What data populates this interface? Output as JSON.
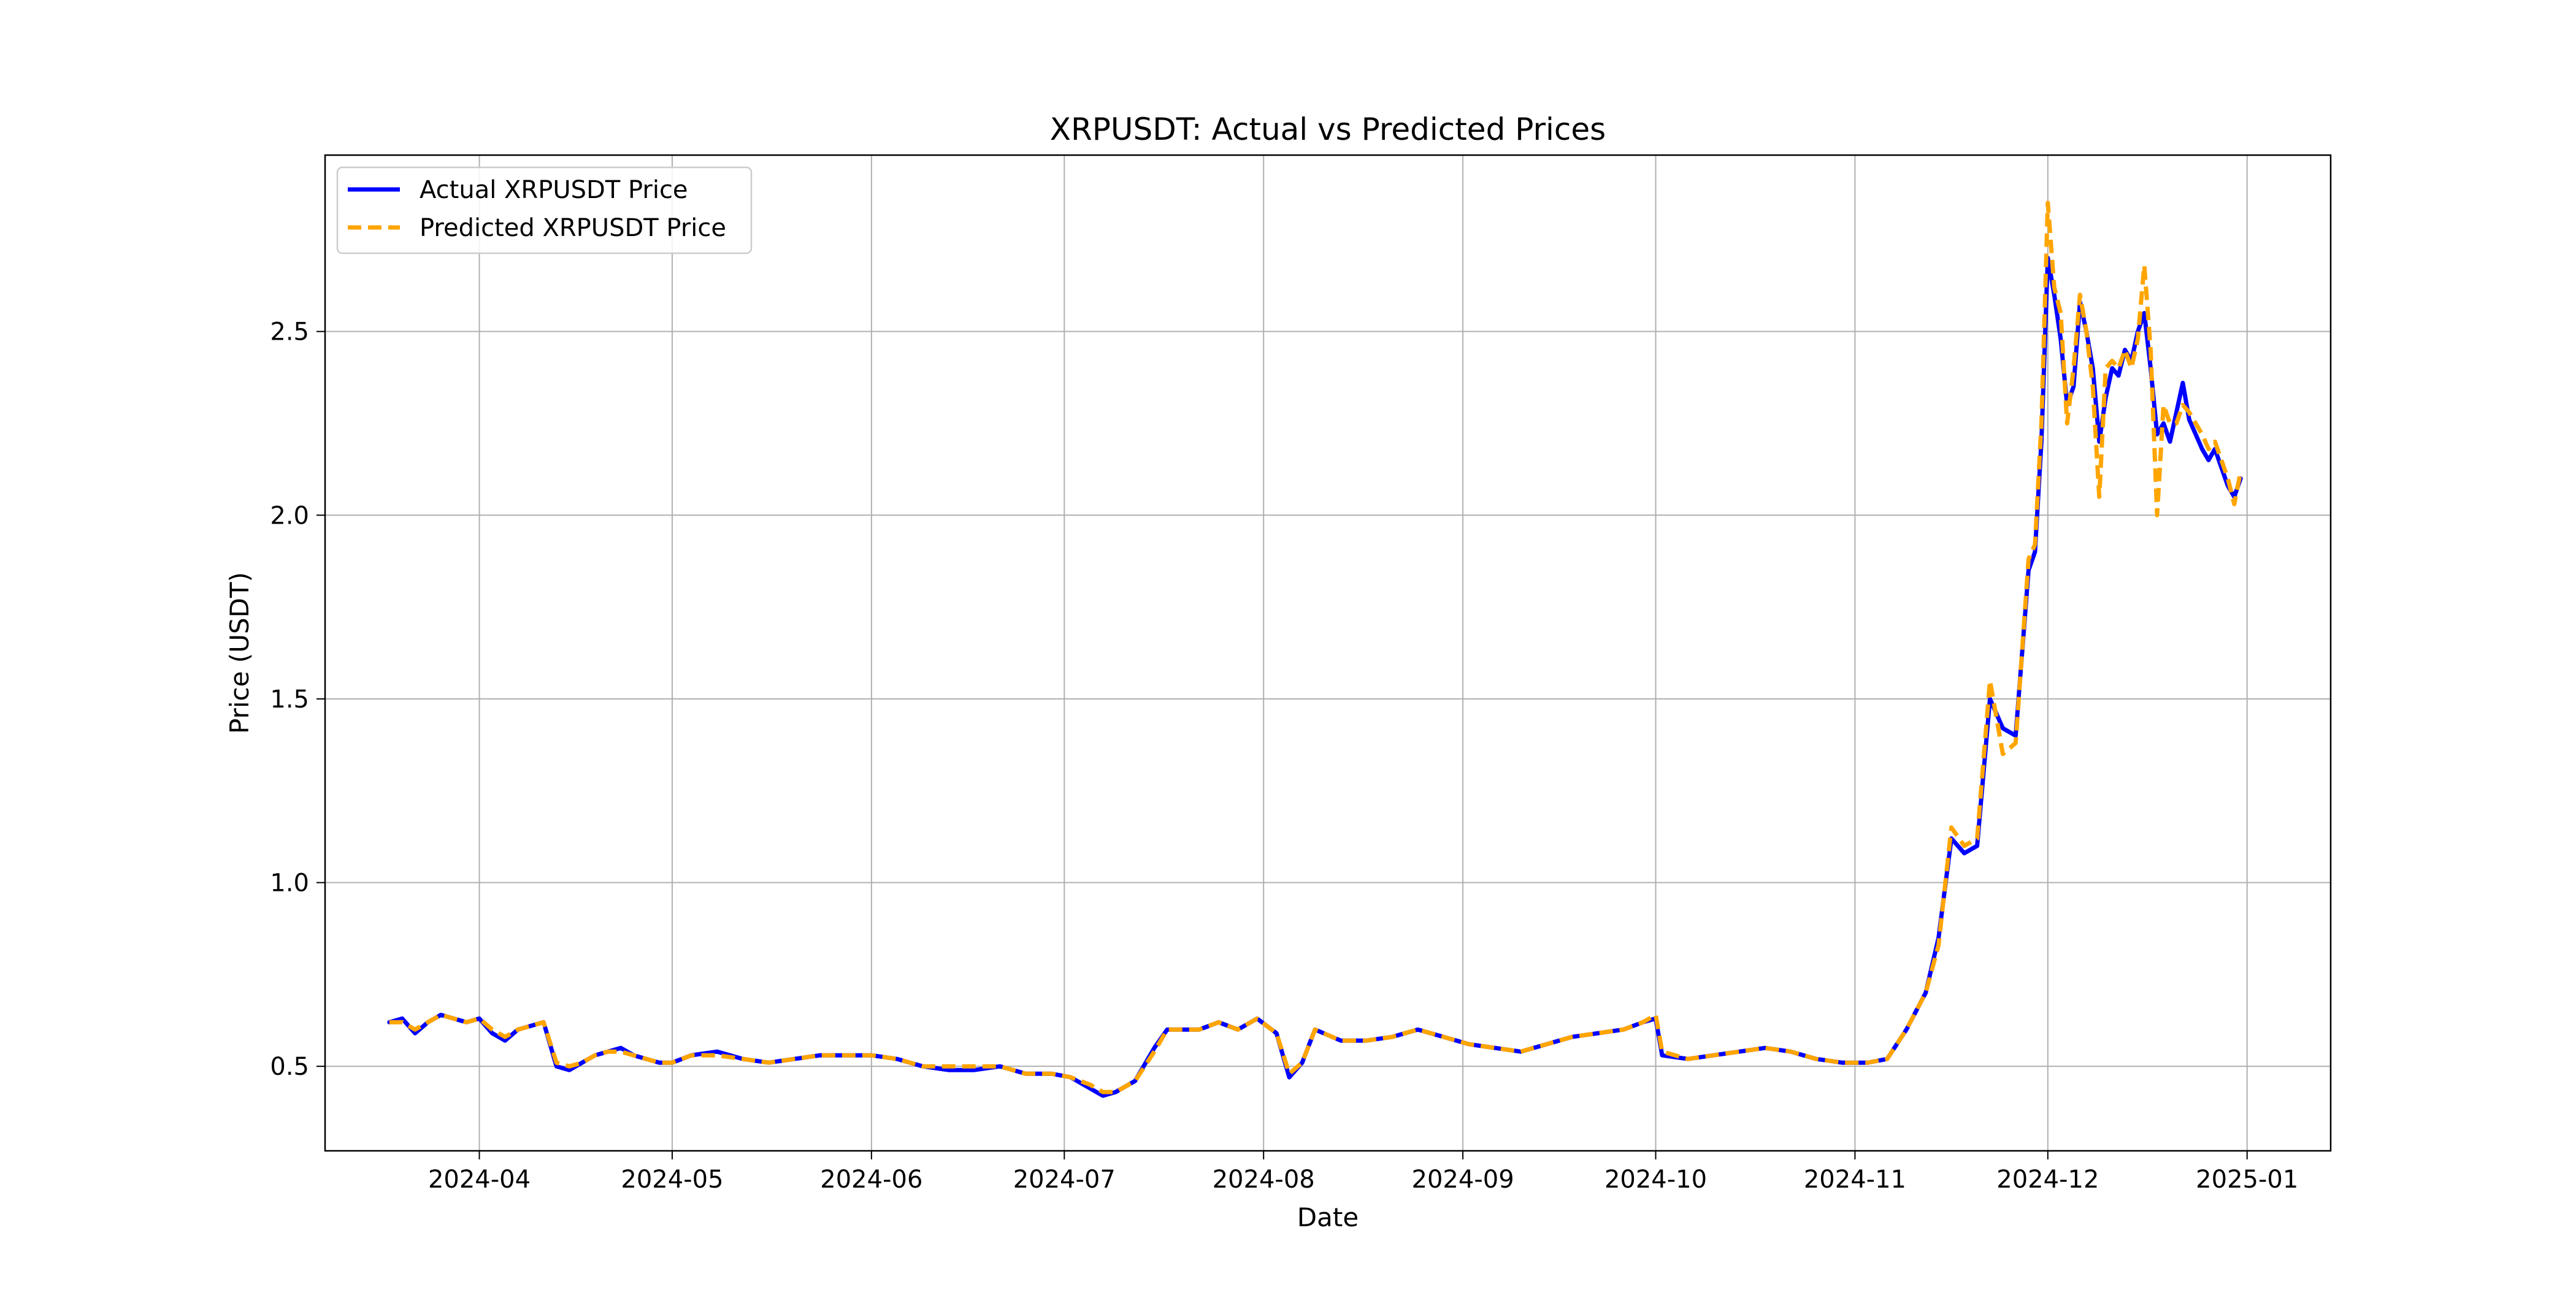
{
  "chart_data": {
    "type": "line",
    "title": "XRPUSDT: Actual vs Predicted Prices",
    "xlabel": "Date",
    "ylabel": "Price (USDT)",
    "x_range": [
      "2024-03-08",
      "2025-01-14"
    ],
    "ylim": [
      0.27,
      2.98
    ],
    "y_ticks": [
      0.5,
      1.0,
      1.5,
      2.0,
      2.5
    ],
    "y_tick_labels": [
      "0.5",
      "1.0",
      "1.5",
      "2.0",
      "2.5"
    ],
    "x_ticks": [
      "2024-04-01",
      "2024-05-01",
      "2024-06-01",
      "2024-07-01",
      "2024-08-01",
      "2024-09-01",
      "2024-10-01",
      "2024-11-01",
      "2024-12-01",
      "2025-01-01"
    ],
    "x_tick_labels": [
      "2024-04",
      "2024-05",
      "2024-06",
      "2024-07",
      "2024-08",
      "2024-09",
      "2024-10",
      "2024-11",
      "2024-12",
      "2025-01"
    ],
    "grid": true,
    "legend_position": "top-left",
    "series": [
      {
        "name": "Actual XRPUSDT Price",
        "color": "#0000ff",
        "style": "solid",
        "x": [
          "2024-03-18",
          "2024-03-20",
          "2024-03-22",
          "2024-03-24",
          "2024-03-26",
          "2024-03-28",
          "2024-03-30",
          "2024-04-01",
          "2024-04-03",
          "2024-04-05",
          "2024-04-07",
          "2024-04-09",
          "2024-04-11",
          "2024-04-13",
          "2024-04-15",
          "2024-04-17",
          "2024-04-19",
          "2024-04-21",
          "2024-04-23",
          "2024-04-25",
          "2024-04-27",
          "2024-04-29",
          "2024-05-01",
          "2024-05-04",
          "2024-05-08",
          "2024-05-12",
          "2024-05-16",
          "2024-05-20",
          "2024-05-24",
          "2024-05-28",
          "2024-06-01",
          "2024-06-05",
          "2024-06-09",
          "2024-06-13",
          "2024-06-17",
          "2024-06-21",
          "2024-06-25",
          "2024-06-29",
          "2024-07-02",
          "2024-07-05",
          "2024-07-07",
          "2024-07-09",
          "2024-07-12",
          "2024-07-15",
          "2024-07-17",
          "2024-07-19",
          "2024-07-22",
          "2024-07-25",
          "2024-07-28",
          "2024-07-31",
          "2024-08-03",
          "2024-08-05",
          "2024-08-07",
          "2024-08-09",
          "2024-08-13",
          "2024-08-17",
          "2024-08-21",
          "2024-08-25",
          "2024-08-29",
          "2024-09-02",
          "2024-09-06",
          "2024-09-10",
          "2024-09-14",
          "2024-09-18",
          "2024-09-22",
          "2024-09-26",
          "2024-09-29",
          "2024-10-01",
          "2024-10-02",
          "2024-10-06",
          "2024-10-10",
          "2024-10-14",
          "2024-10-18",
          "2024-10-22",
          "2024-10-26",
          "2024-10-30",
          "2024-11-03",
          "2024-11-06",
          "2024-11-09",
          "2024-11-12",
          "2024-11-14",
          "2024-11-16",
          "2024-11-18",
          "2024-11-20",
          "2024-11-22",
          "2024-11-24",
          "2024-11-26",
          "2024-11-28",
          "2024-11-29",
          "2024-11-30",
          "2024-12-01",
          "2024-12-02",
          "2024-12-03",
          "2024-12-04",
          "2024-12-05",
          "2024-12-06",
          "2024-12-07",
          "2024-12-08",
          "2024-12-09",
          "2024-12-10",
          "2024-12-11",
          "2024-12-12",
          "2024-12-13",
          "2024-12-14",
          "2024-12-15",
          "2024-12-16",
          "2024-12-17",
          "2024-12-18",
          "2024-12-19",
          "2024-12-20",
          "2024-12-21",
          "2024-12-22",
          "2024-12-23",
          "2024-12-24",
          "2024-12-25",
          "2024-12-26",
          "2024-12-27",
          "2024-12-28",
          "2024-12-29",
          "2024-12-30",
          "2024-12-31"
        ],
        "y": [
          0.62,
          0.63,
          0.59,
          0.62,
          0.64,
          0.63,
          0.62,
          0.63,
          0.59,
          0.57,
          0.6,
          0.61,
          0.62,
          0.5,
          0.49,
          0.51,
          0.53,
          0.54,
          0.55,
          0.53,
          0.52,
          0.51,
          0.51,
          0.53,
          0.54,
          0.52,
          0.51,
          0.52,
          0.53,
          0.53,
          0.53,
          0.52,
          0.5,
          0.49,
          0.49,
          0.5,
          0.48,
          0.48,
          0.47,
          0.44,
          0.42,
          0.43,
          0.46,
          0.55,
          0.6,
          0.6,
          0.6,
          0.62,
          0.6,
          0.63,
          0.59,
          0.47,
          0.51,
          0.6,
          0.57,
          0.57,
          0.58,
          0.6,
          0.58,
          0.56,
          0.55,
          0.54,
          0.56,
          0.58,
          0.59,
          0.6,
          0.62,
          0.63,
          0.53,
          0.52,
          0.53,
          0.54,
          0.55,
          0.54,
          0.52,
          0.51,
          0.51,
          0.52,
          0.6,
          0.7,
          0.85,
          1.12,
          1.08,
          1.1,
          1.5,
          1.42,
          1.4,
          1.85,
          1.9,
          2.2,
          2.7,
          2.6,
          2.48,
          2.3,
          2.35,
          2.58,
          2.5,
          2.4,
          2.2,
          2.32,
          2.4,
          2.38,
          2.45,
          2.42,
          2.5,
          2.55,
          2.4,
          2.22,
          2.25,
          2.2,
          2.28,
          2.36,
          2.26,
          2.22,
          2.18,
          2.15,
          2.18,
          2.13,
          2.08,
          2.05,
          2.1
        ]
      },
      {
        "name": "Predicted XRPUSDT Price",
        "color": "#ffa500",
        "style": "dashed",
        "x": [
          "2024-03-18",
          "2024-03-20",
          "2024-03-22",
          "2024-03-24",
          "2024-03-26",
          "2024-03-28",
          "2024-03-30",
          "2024-04-01",
          "2024-04-03",
          "2024-04-05",
          "2024-04-07",
          "2024-04-09",
          "2024-04-11",
          "2024-04-13",
          "2024-04-15",
          "2024-04-17",
          "2024-04-19",
          "2024-04-21",
          "2024-04-23",
          "2024-04-25",
          "2024-04-27",
          "2024-04-29",
          "2024-05-01",
          "2024-05-04",
          "2024-05-08",
          "2024-05-12",
          "2024-05-16",
          "2024-05-20",
          "2024-05-24",
          "2024-05-28",
          "2024-06-01",
          "2024-06-05",
          "2024-06-09",
          "2024-06-13",
          "2024-06-17",
          "2024-06-21",
          "2024-06-25",
          "2024-06-29",
          "2024-07-02",
          "2024-07-05",
          "2024-07-07",
          "2024-07-09",
          "2024-07-12",
          "2024-07-15",
          "2024-07-17",
          "2024-07-19",
          "2024-07-22",
          "2024-07-25",
          "2024-07-28",
          "2024-07-31",
          "2024-08-03",
          "2024-08-05",
          "2024-08-07",
          "2024-08-09",
          "2024-08-13",
          "2024-08-17",
          "2024-08-21",
          "2024-08-25",
          "2024-08-29",
          "2024-09-02",
          "2024-09-06",
          "2024-09-10",
          "2024-09-14",
          "2024-09-18",
          "2024-09-22",
          "2024-09-26",
          "2024-09-29",
          "2024-10-01",
          "2024-10-02",
          "2024-10-06",
          "2024-10-10",
          "2024-10-14",
          "2024-10-18",
          "2024-10-22",
          "2024-10-26",
          "2024-10-30",
          "2024-11-03",
          "2024-11-06",
          "2024-11-09",
          "2024-11-12",
          "2024-11-14",
          "2024-11-16",
          "2024-11-18",
          "2024-11-20",
          "2024-11-22",
          "2024-11-24",
          "2024-11-26",
          "2024-11-28",
          "2024-11-29",
          "2024-11-30",
          "2024-12-01",
          "2024-12-02",
          "2024-12-03",
          "2024-12-04",
          "2024-12-05",
          "2024-12-06",
          "2024-12-07",
          "2024-12-08",
          "2024-12-09",
          "2024-12-10",
          "2024-12-11",
          "2024-12-12",
          "2024-12-13",
          "2024-12-14",
          "2024-12-15",
          "2024-12-16",
          "2024-12-17",
          "2024-12-18",
          "2024-12-19",
          "2024-12-20",
          "2024-12-21",
          "2024-12-22",
          "2024-12-23",
          "2024-12-24",
          "2024-12-25",
          "2024-12-26",
          "2024-12-27",
          "2024-12-28",
          "2024-12-29",
          "2024-12-30",
          "2024-12-31"
        ],
        "y": [
          0.62,
          0.62,
          0.6,
          0.62,
          0.64,
          0.63,
          0.62,
          0.63,
          0.6,
          0.58,
          0.6,
          0.61,
          0.62,
          0.51,
          0.5,
          0.51,
          0.53,
          0.54,
          0.54,
          0.53,
          0.52,
          0.51,
          0.51,
          0.53,
          0.53,
          0.52,
          0.51,
          0.52,
          0.53,
          0.53,
          0.53,
          0.52,
          0.5,
          0.5,
          0.5,
          0.5,
          0.48,
          0.48,
          0.47,
          0.45,
          0.43,
          0.43,
          0.46,
          0.54,
          0.6,
          0.6,
          0.6,
          0.62,
          0.6,
          0.63,
          0.59,
          0.48,
          0.51,
          0.6,
          0.57,
          0.57,
          0.58,
          0.6,
          0.58,
          0.56,
          0.55,
          0.54,
          0.56,
          0.58,
          0.59,
          0.6,
          0.62,
          0.64,
          0.54,
          0.52,
          0.53,
          0.54,
          0.55,
          0.54,
          0.52,
          0.51,
          0.51,
          0.52,
          0.6,
          0.7,
          0.83,
          1.15,
          1.1,
          1.12,
          1.55,
          1.35,
          1.38,
          1.88,
          1.92,
          2.25,
          2.85,
          2.62,
          2.55,
          2.25,
          2.4,
          2.6,
          2.5,
          2.35,
          2.05,
          2.4,
          2.42,
          2.4,
          2.45,
          2.4,
          2.48,
          2.68,
          2.45,
          2.0,
          2.3,
          2.25,
          2.25,
          2.3,
          2.28,
          2.25,
          2.22,
          2.18,
          2.2,
          2.15,
          2.1,
          2.03,
          2.12
        ]
      }
    ]
  }
}
